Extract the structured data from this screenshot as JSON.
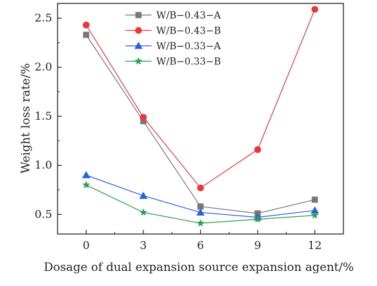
{
  "chart_data": {
    "type": "line",
    "title": "",
    "xlabel": "Dosage of dual expansion source expansion agent/%",
    "ylabel": "Weight loss rate/%",
    "x": [
      0,
      3,
      6,
      9,
      12
    ],
    "x_ticks": [
      "0",
      "3",
      "6",
      "9",
      "12"
    ],
    "y_ticks": [
      "0.5",
      "1.0",
      "1.5",
      "2.0",
      "2.5"
    ],
    "xlim": [
      -1.5,
      13.5
    ],
    "ylim": [
      0.3,
      2.65
    ],
    "grid": false,
    "legend_position": "top-center",
    "series": [
      {
        "name": "W/B−0.43−A",
        "color": "#777777",
        "marker": "square",
        "values": [
          2.33,
          1.45,
          0.58,
          0.51,
          0.65
        ]
      },
      {
        "name": "W/B−0.43−B",
        "color": "#e8383d",
        "marker": "circle",
        "values": [
          2.43,
          1.49,
          0.77,
          1.16,
          2.59
        ]
      },
      {
        "name": "W/B−0.33−A",
        "color": "#2a5fe0",
        "marker": "triangle",
        "values": [
          0.9,
          0.69,
          0.52,
          0.47,
          0.54
        ]
      },
      {
        "name": "W/B−0.33−B",
        "color": "#2e9e56",
        "marker": "star",
        "values": [
          0.8,
          0.52,
          0.41,
          0.45,
          0.49
        ]
      }
    ]
  }
}
